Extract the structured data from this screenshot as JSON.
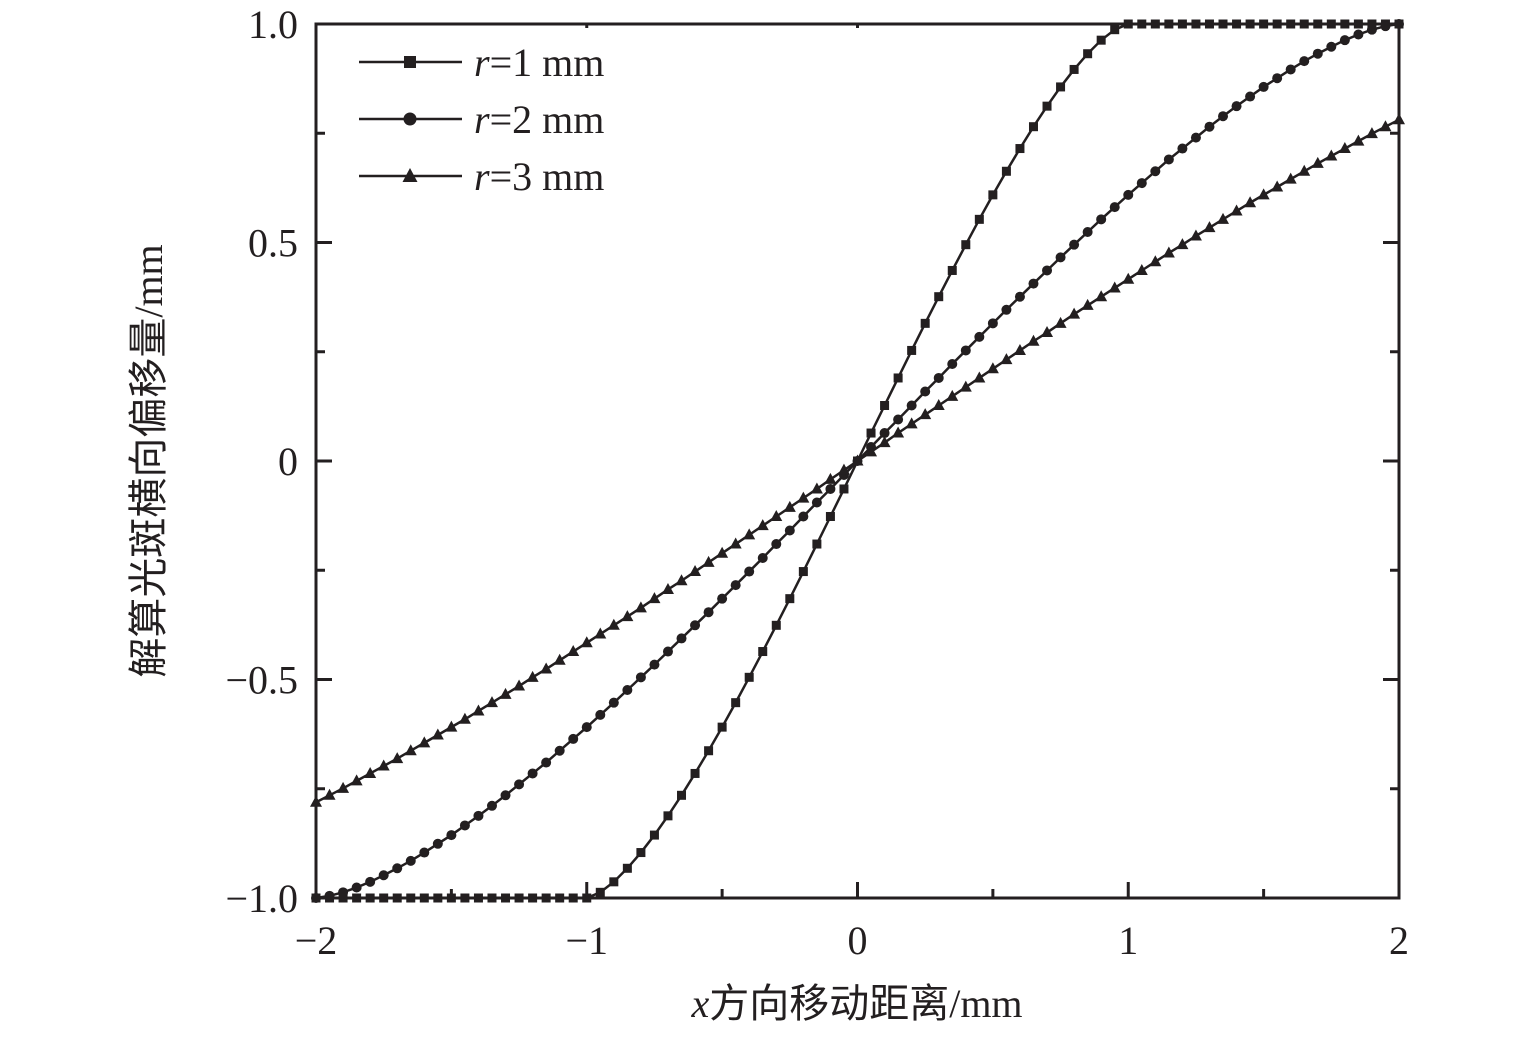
{
  "chart_data": {
    "type": "line",
    "xlabel": "x方向移动距离/mm",
    "xlabel_italic_prefix": "x",
    "xlabel_rest": "方向移动距离/mm",
    "ylabel": "解算光斑横向偏移量/mm",
    "xlim": [
      -2,
      2
    ],
    "ylim": [
      -1,
      1
    ],
    "x_major_ticks": [
      -2,
      -1,
      0,
      1,
      2
    ],
    "x_tick_labels": [
      "−2",
      "−1",
      "0",
      "1",
      "2"
    ],
    "x_minor_ticks": [
      -1.5,
      -0.5,
      0.5,
      1.5
    ],
    "y_major_ticks": [
      -1,
      -0.5,
      0,
      0.5,
      1
    ],
    "y_tick_labels": [
      "−1.0",
      "−0.5",
      "0",
      "0.5",
      "1.0"
    ],
    "y_minor_ticks": [
      -0.75,
      -0.25,
      0.25,
      0.75
    ],
    "grid": false,
    "legend_position": "top-left",
    "line_color": "#231f20",
    "x": [
      -2,
      -1.95,
      -1.9,
      -1.85,
      -1.8,
      -1.75,
      -1.7,
      -1.65,
      -1.6,
      -1.55,
      -1.5,
      -1.45,
      -1.4,
      -1.35,
      -1.3,
      -1.25,
      -1.2,
      -1.15,
      -1.1,
      -1.05,
      -1,
      -0.95,
      -0.9,
      -0.85,
      -0.8,
      -0.75,
      -0.7,
      -0.65,
      -0.6,
      -0.55,
      -0.5,
      -0.45,
      -0.4,
      -0.35,
      -0.3,
      -0.25,
      -0.2,
      -0.15,
      -0.1,
      -0.05,
      0,
      0.05,
      0.1,
      0.15,
      0.2,
      0.25,
      0.3,
      0.35,
      0.4,
      0.45,
      0.5,
      0.55,
      0.6,
      0.65,
      0.7,
      0.75,
      0.8,
      0.85,
      0.9,
      0.95,
      1,
      1.05,
      1.1,
      1.15,
      1.2,
      1.25,
      1.3,
      1.35,
      1.4,
      1.45,
      1.5,
      1.55,
      1.6,
      1.65,
      1.7,
      1.75,
      1.8,
      1.85,
      1.9,
      1.95,
      2
    ],
    "series": [
      {
        "name": "r=1 mm",
        "italic": "r",
        "rest": "=1 mm",
        "marker": "square",
        "values": [
          -1,
          -1,
          -1,
          -1,
          -1,
          -1,
          -1,
          -1,
          -1,
          -1,
          -1,
          -1,
          -1,
          -1,
          -1,
          -1,
          -1,
          -1,
          -1,
          -1,
          -1,
          -0.987,
          -0.963,
          -0.932,
          -0.896,
          -0.856,
          -0.812,
          -0.765,
          -0.715,
          -0.663,
          -0.609,
          -0.553,
          -0.495,
          -0.436,
          -0.376,
          -0.315,
          -0.253,
          -0.19,
          -0.127,
          -0.064,
          0,
          0.064,
          0.127,
          0.19,
          0.253,
          0.315,
          0.376,
          0.436,
          0.495,
          0.553,
          0.609,
          0.663,
          0.715,
          0.765,
          0.812,
          0.856,
          0.896,
          0.932,
          0.963,
          0.987,
          1,
          1,
          1,
          1,
          1,
          1,
          1,
          1,
          1,
          1,
          1,
          1,
          1,
          1,
          1,
          1,
          1,
          1,
          1,
          1,
          1
        ]
      },
      {
        "name": "r=2 mm",
        "italic": "r",
        "rest": "=2 mm",
        "marker": "circle",
        "values": [
          -1.0,
          -0.995,
          -0.987,
          -0.976,
          -0.963,
          -0.948,
          -0.932,
          -0.915,
          -0.896,
          -0.876,
          -0.856,
          -0.834,
          -0.812,
          -0.789,
          -0.765,
          -0.74,
          -0.715,
          -0.69,
          -0.663,
          -0.636,
          -0.609,
          -0.581,
          -0.553,
          -0.524,
          -0.495,
          -0.466,
          -0.436,
          -0.406,
          -0.376,
          -0.346,
          -0.315,
          -0.284,
          -0.253,
          -0.222,
          -0.19,
          -0.159,
          -0.127,
          -0.095,
          -0.064,
          -0.032,
          0,
          0.032,
          0.064,
          0.095,
          0.127,
          0.159,
          0.19,
          0.222,
          0.253,
          0.284,
          0.315,
          0.346,
          0.376,
          0.406,
          0.436,
          0.466,
          0.495,
          0.524,
          0.553,
          0.581,
          0.609,
          0.636,
          0.663,
          0.69,
          0.715,
          0.74,
          0.765,
          0.789,
          0.812,
          0.834,
          0.856,
          0.876,
          0.896,
          0.915,
          0.932,
          0.948,
          0.963,
          0.976,
          0.987,
          0.995,
          1.0
        ]
      },
      {
        "name": "r=3 mm",
        "italic": "r",
        "rest": "=3 mm",
        "marker": "triangle",
        "values": [
          -0.781,
          -0.765,
          -0.749,
          -0.732,
          -0.715,
          -0.698,
          -0.681,
          -0.663,
          -0.645,
          -0.627,
          -0.609,
          -0.591,
          -0.572,
          -0.553,
          -0.534,
          -0.515,
          -0.495,
          -0.476,
          -0.456,
          -0.436,
          -0.416,
          -0.396,
          -0.376,
          -0.356,
          -0.336,
          -0.315,
          -0.294,
          -0.274,
          -0.253,
          -0.232,
          -0.211,
          -0.19,
          -0.169,
          -0.148,
          -0.127,
          -0.106,
          -0.085,
          -0.064,
          -0.042,
          -0.021,
          0,
          0.021,
          0.042,
          0.064,
          0.085,
          0.106,
          0.127,
          0.148,
          0.169,
          0.19,
          0.211,
          0.232,
          0.253,
          0.274,
          0.294,
          0.315,
          0.336,
          0.356,
          0.376,
          0.396,
          0.416,
          0.436,
          0.456,
          0.476,
          0.495,
          0.515,
          0.534,
          0.553,
          0.572,
          0.591,
          0.609,
          0.627,
          0.645,
          0.663,
          0.681,
          0.698,
          0.715,
          0.732,
          0.749,
          0.765,
          0.781
        ]
      }
    ]
  }
}
